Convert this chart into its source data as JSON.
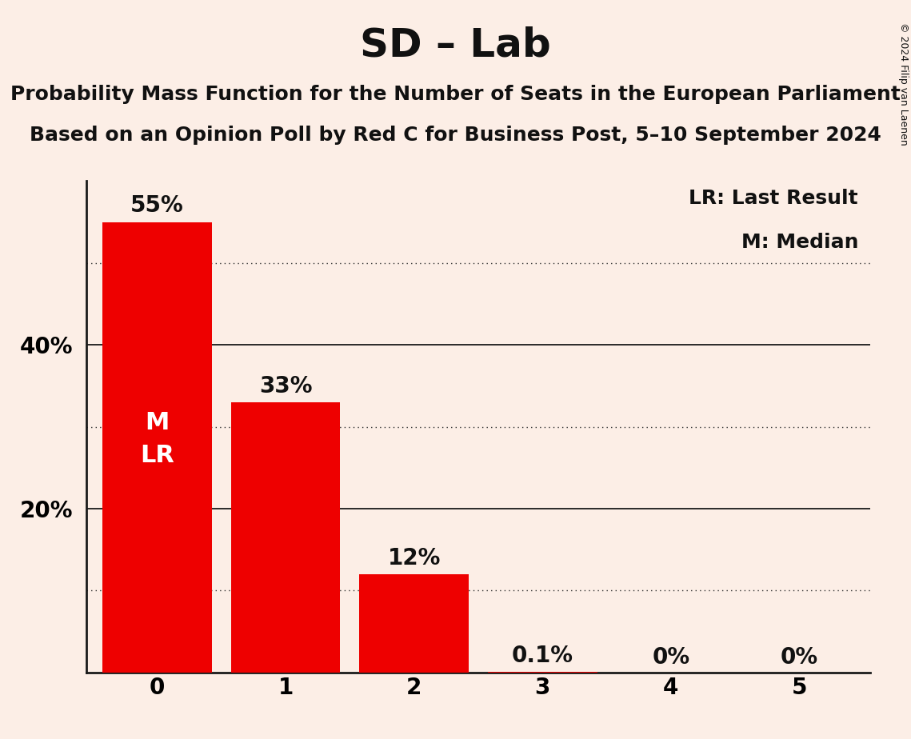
{
  "title": "SD – Lab",
  "subtitle1": "Probability Mass Function for the Number of Seats in the European Parliament",
  "subtitle2": "Based on an Opinion Poll by Red C for Business Post, 5–10 September 2024",
  "copyright": "© 2024 Filip van Laenen",
  "categories": [
    0,
    1,
    2,
    3,
    4,
    5
  ],
  "values": [
    0.55,
    0.33,
    0.12,
    0.001,
    0.0,
    0.0
  ],
  "bar_color": "#ee0000",
  "background_color": "#fceee6",
  "bar_labels": [
    "55%",
    "33%",
    "12%",
    "0.1%",
    "0%",
    "0%"
  ],
  "ytick_labels": [
    "",
    "20%",
    "40%"
  ],
  "dotted_lines": [
    0.5,
    0.3,
    0.1
  ],
  "solid_lines": [
    0.4,
    0.2
  ],
  "median_bar": 0,
  "last_result_bar": 0,
  "legend_lr": "LR: Last Result",
  "legend_m": "M: Median",
  "title_fontsize": 36,
  "subtitle_fontsize": 18,
  "tick_fontsize": 20,
  "bar_label_fontsize": 20,
  "inside_label_fontsize": 22,
  "legend_fontsize": 18,
  "ylim_max": 0.6,
  "copyright_fontsize": 9
}
